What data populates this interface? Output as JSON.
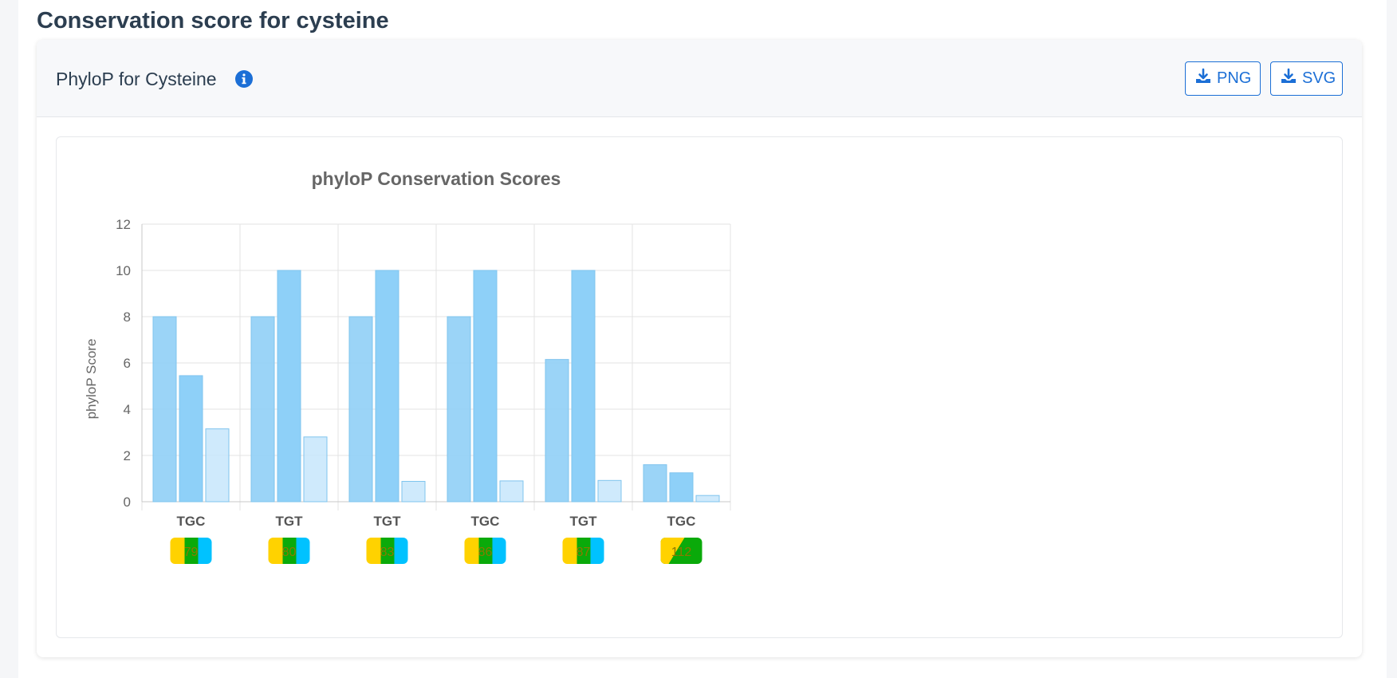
{
  "page": {
    "section_title": "Conservation score for cysteine"
  },
  "card": {
    "title": "PhyloP for Cysteine",
    "info_icon": "info-circle-icon",
    "buttons": [
      {
        "label": "PNG",
        "icon": "download-icon"
      },
      {
        "label": "SVG",
        "icon": "download-icon"
      }
    ]
  },
  "colors": {
    "bar_series_1": "#90cff6",
    "bar_series_2": "#88cdf8",
    "bar_series_3": "#c7e6fb",
    "bar_stroke": "#7fc4ee",
    "badge_yellow": "#ffd200",
    "badge_green": "#0aaa0a",
    "badge_cyan": "#00c2ff",
    "link_blue": "#1c6fd6"
  },
  "chart_data": {
    "type": "bar",
    "title": "phyloP Conservation Scores",
    "xlabel": "",
    "ylabel": "phyloP Score",
    "ylim": [
      0,
      12
    ],
    "yticks": [
      0,
      2,
      4,
      6,
      8,
      10,
      12
    ],
    "grid": true,
    "legend": "none",
    "categories": [
      "TGC",
      "TGT",
      "TGT",
      "TGC",
      "TGT",
      "TGC"
    ],
    "badges": [
      {
        "label": "79",
        "style": "tri"
      },
      {
        "label": "80",
        "style": "tri"
      },
      {
        "label": "83",
        "style": "tri"
      },
      {
        "label": "86",
        "style": "tri"
      },
      {
        "label": "87",
        "style": "tri"
      },
      {
        "label": "112",
        "style": "diag"
      }
    ],
    "series": [
      {
        "values": [
          8.0,
          8.0,
          8.0,
          8.0,
          6.15,
          1.6
        ]
      },
      {
        "values": [
          5.45,
          10.0,
          10.0,
          10.0,
          10.0,
          1.25
        ]
      },
      {
        "values": [
          3.15,
          2.8,
          0.88,
          0.9,
          0.92,
          0.27
        ]
      }
    ]
  }
}
